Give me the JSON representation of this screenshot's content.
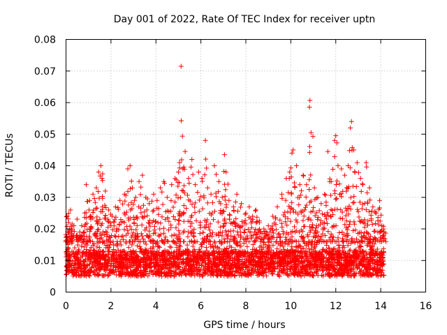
{
  "chart_data": {
    "type": "scatter",
    "title": "Day 001 of 2022, Rate Of TEC Index for receiver uptn",
    "xlabel": "GPS time / hours",
    "ylabel": "ROTI / TECUs",
    "xlim": [
      0,
      16
    ],
    "ylim": [
      0,
      0.08
    ],
    "x_ticks": [
      0,
      2,
      4,
      6,
      8,
      10,
      12,
      14,
      16
    ],
    "x_tick_labels": [
      "0",
      "2",
      "4",
      "6",
      "8",
      "10",
      "12",
      "14",
      "16"
    ],
    "y_ticks": [
      0,
      0.01,
      0.02,
      0.03,
      0.04,
      0.05,
      0.06,
      0.07,
      0.08
    ],
    "y_tick_labels": [
      "0",
      "0.01",
      "0.02",
      "0.03",
      "0.04",
      "0.05",
      "0.06",
      "0.07",
      "0.08"
    ],
    "grid": true,
    "marker": "+",
    "series": [
      {
        "name": "ROTI",
        "color": "#ff0000",
        "points": [
          [
            0.05,
            0.024
          ],
          [
            0.1,
            0.016
          ],
          [
            0.2,
            0.026
          ],
          [
            0.35,
            0.021
          ],
          [
            0.5,
            0.018
          ],
          [
            0.7,
            0.021
          ],
          [
            0.9,
            0.034
          ],
          [
            1.05,
            0.029
          ],
          [
            1.2,
            0.031
          ],
          [
            1.35,
            0.033
          ],
          [
            1.45,
            0.038
          ],
          [
            1.55,
            0.04
          ],
          [
            1.6,
            0.036
          ],
          [
            1.75,
            0.032
          ],
          [
            1.9,
            0.026
          ],
          [
            2.05,
            0.024
          ],
          [
            2.2,
            0.027
          ],
          [
            2.4,
            0.029
          ],
          [
            2.6,
            0.031
          ],
          [
            2.75,
            0.039
          ],
          [
            2.85,
            0.04
          ],
          [
            2.95,
            0.033
          ],
          [
            3.1,
            0.03
          ],
          [
            3.25,
            0.035
          ],
          [
            3.4,
            0.037
          ],
          [
            3.55,
            0.03
          ],
          [
            3.7,
            0.028
          ],
          [
            3.9,
            0.031
          ],
          [
            4.05,
            0.029
          ],
          [
            4.2,
            0.033
          ],
          [
            4.35,
            0.035
          ],
          [
            4.5,
            0.03
          ],
          [
            4.7,
            0.034
          ],
          [
            4.85,
            0.036
          ],
          [
            5.0,
            0.038
          ],
          [
            5.05,
            0.041
          ],
          [
            5.12,
            0.0715
          ],
          [
            5.2,
            0.039
          ],
          [
            5.3,
            0.0445
          ],
          [
            5.45,
            0.036
          ],
          [
            5.6,
            0.042
          ],
          [
            5.75,
            0.034
          ],
          [
            5.9,
            0.038
          ],
          [
            6.05,
            0.036
          ],
          [
            6.2,
            0.048
          ],
          [
            6.3,
            0.033
          ],
          [
            6.45,
            0.031
          ],
          [
            6.6,
            0.04
          ],
          [
            6.8,
            0.035
          ],
          [
            6.95,
            0.03
          ],
          [
            7.05,
            0.0435
          ],
          [
            7.12,
            0.038
          ],
          [
            7.25,
            0.029
          ],
          [
            7.45,
            0.027
          ],
          [
            7.6,
            0.031
          ],
          [
            7.8,
            0.028
          ],
          [
            8.0,
            0.025
          ],
          [
            8.15,
            0.027
          ],
          [
            8.3,
            0.024
          ],
          [
            8.45,
            0.026
          ],
          [
            8.6,
            0.022
          ],
          [
            8.8,
            0.02
          ],
          [
            9.0,
            0.021
          ],
          [
            9.2,
            0.024
          ],
          [
            9.4,
            0.027
          ],
          [
            9.6,
            0.031
          ],
          [
            9.8,
            0.036
          ],
          [
            9.95,
            0.038
          ],
          [
            10.05,
            0.044
          ],
          [
            10.1,
            0.045
          ],
          [
            10.25,
            0.04
          ],
          [
            10.4,
            0.034
          ],
          [
            10.55,
            0.037
          ],
          [
            10.7,
            0.034
          ],
          [
            10.85,
            0.0607
          ],
          [
            10.9,
            0.0505
          ],
          [
            11.05,
            0.033
          ],
          [
            11.2,
            0.03
          ],
          [
            11.35,
            0.028
          ],
          [
            11.5,
            0.031
          ],
          [
            11.65,
            0.0445
          ],
          [
            11.8,
            0.035
          ],
          [
            11.95,
            0.048
          ],
          [
            12.0,
            0.0495
          ],
          [
            12.1,
            0.04
          ],
          [
            12.25,
            0.039
          ],
          [
            12.4,
            0.037
          ],
          [
            12.55,
            0.04
          ],
          [
            12.65,
            0.052
          ],
          [
            12.7,
            0.054
          ],
          [
            12.8,
            0.045
          ],
          [
            12.95,
            0.041
          ],
          [
            13.1,
            0.036
          ],
          [
            13.2,
            0.034
          ],
          [
            13.35,
            0.041
          ],
          [
            13.5,
            0.033
          ],
          [
            13.65,
            0.027
          ],
          [
            13.8,
            0.025
          ],
          [
            13.95,
            0.029
          ],
          [
            14.05,
            0.021
          ],
          [
            14.15,
            0.019
          ]
        ],
        "dense_band": {
          "x_range": [
            0,
            14.15
          ],
          "y_range": [
            0.003,
            0.022
          ],
          "typical_y": 0.009
        }
      }
    ]
  }
}
